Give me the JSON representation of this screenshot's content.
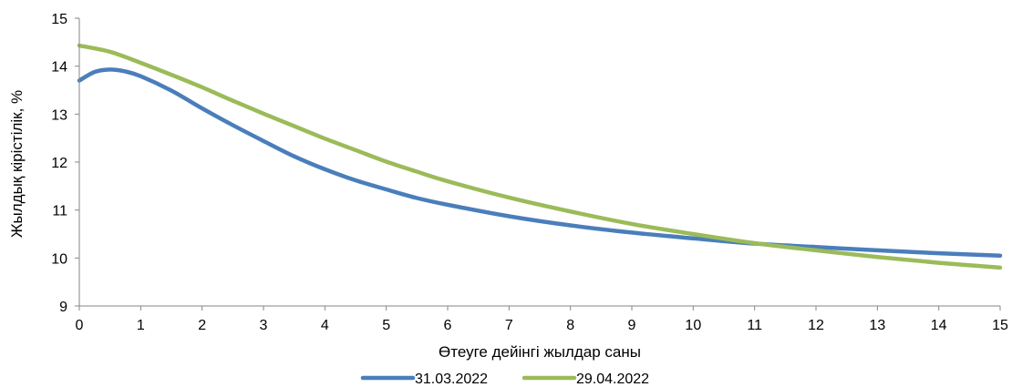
{
  "chart_data": {
    "type": "line",
    "title": "",
    "xlabel": "Өтеуге дейінгі жылдар саны",
    "ylabel": "Жылдық кірістілік, %",
    "xlim": [
      0,
      15
    ],
    "ylim": [
      9,
      15
    ],
    "x_ticks": [
      "0",
      "1",
      "2",
      "3",
      "4",
      "5",
      "6",
      "7",
      "8",
      "9",
      "10",
      "11",
      "12",
      "13",
      "14",
      "15"
    ],
    "y_ticks": [
      "9",
      "10",
      "11",
      "12",
      "13",
      "14",
      "15"
    ],
    "grid": false,
    "legend_position": "bottom",
    "series": [
      {
        "name": "31.03.2022",
        "color": "#4a7ebb",
        "x": [
          0,
          0.25,
          0.5,
          0.75,
          1,
          1.5,
          2,
          2.5,
          3,
          3.5,
          4,
          4.5,
          5,
          5.5,
          6,
          7,
          8,
          9,
          10,
          11,
          12,
          13,
          14,
          15
        ],
        "y": [
          13.7,
          13.88,
          13.93,
          13.89,
          13.79,
          13.49,
          13.12,
          12.77,
          12.44,
          12.12,
          11.85,
          11.62,
          11.43,
          11.25,
          11.11,
          10.87,
          10.68,
          10.53,
          10.41,
          10.3,
          10.23,
          10.16,
          10.1,
          10.05
        ]
      },
      {
        "name": "29.04.2022",
        "color": "#9bbb59",
        "x": [
          0,
          0.5,
          1,
          1.5,
          2,
          2.5,
          3,
          3.5,
          4,
          4.5,
          5,
          5.5,
          6,
          7,
          8,
          9,
          10,
          11,
          12,
          13,
          14,
          15
        ],
        "y": [
          14.43,
          14.3,
          14.07,
          13.82,
          13.56,
          13.28,
          13.01,
          12.75,
          12.49,
          12.25,
          12.01,
          11.8,
          11.6,
          11.26,
          10.97,
          10.71,
          10.5,
          10.31,
          10.16,
          10.02,
          9.9,
          9.8
        ]
      }
    ]
  }
}
